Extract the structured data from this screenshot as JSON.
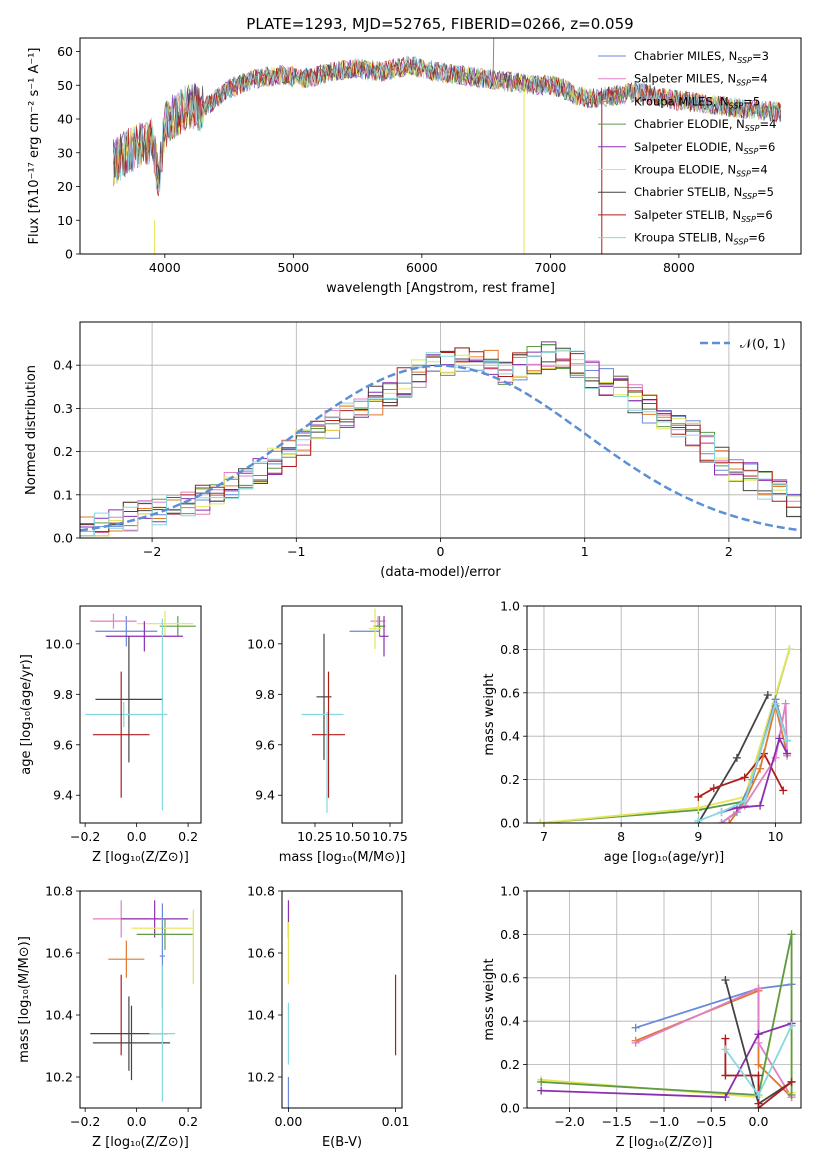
{
  "title": "PLATE=1293, MJD=52765, FIBERID=0266, z=0.059",
  "chart_data": [
    {
      "id": "spectrum",
      "type": "line",
      "xlabel": "wavelength [Angstrom, rest frame]",
      "ylabel": "Flux [fλ10⁻¹⁷ erg cm⁻² s⁻¹ A⁻¹]",
      "xlim": [
        3340,
        8950
      ],
      "ylim": [
        0,
        64
      ],
      "xticks": [
        4000,
        5000,
        6000,
        7000,
        8000
      ],
      "yticks": [
        0,
        10,
        20,
        30,
        40,
        50,
        60
      ],
      "grid": false,
      "legend_position": "top-right",
      "continuum": {
        "x": [
          3600,
          3700,
          3800,
          3900,
          3950,
          4000,
          4100,
          4200,
          4300,
          4400,
          4500,
          4700,
          4900,
          5100,
          5300,
          5500,
          5700,
          5900,
          6100,
          6300,
          6500,
          6700,
          6900,
          7000,
          7100,
          7200,
          7300,
          7500,
          7700,
          7900,
          8100,
          8300,
          8500,
          8800
        ],
        "y": [
          27,
          30,
          32,
          34,
          22,
          38,
          42,
          44,
          43,
          46,
          49,
          52,
          53,
          52,
          54,
          55,
          54,
          56,
          54,
          53,
          52,
          51,
          50,
          50,
          49,
          47,
          46,
          47,
          48,
          46,
          45,
          44,
          43,
          42
        ]
      },
      "series": [
        {
          "name": "Chabrier MILES, N_SSP=3",
          "label_main": "Chabrier MILES, N",
          "label_sub": "SSP",
          "label_tail": "=3",
          "color": "#6a89d8"
        },
        {
          "name": "Salpeter MILES, N_SSP=4",
          "label_main": "Salpeter MILES, N",
          "label_sub": "SSP",
          "label_tail": "=4",
          "color": "#e07fc4"
        },
        {
          "name": "Kroupa MILES, N_SSP=5",
          "label_main": "Kroupa MILES, N",
          "label_sub": "SSP",
          "label_tail": "=5",
          "color": "#e0782e"
        },
        {
          "name": "Chabrier ELODIE, N_SSP=4",
          "label_main": "Chabrier ELODIE, N",
          "label_sub": "SSP",
          "label_tail": "=4",
          "color": "#5d9a4a"
        },
        {
          "name": "Salpeter ELODIE, N_SSP=6",
          "label_main": "Salpeter ELODIE, N",
          "label_sub": "SSP",
          "label_tail": "=6",
          "color": "#8b2fb0"
        },
        {
          "name": "Kroupa ELODIE, N_SSP=4",
          "label_main": "Kroupa ELODIE, N",
          "label_sub": "SSP",
          "label_tail": "=4",
          "color": "#e5e55a"
        },
        {
          "name": "Chabrier STELIB, N_SSP=5",
          "label_main": "Chabrier STELIB, N",
          "label_sub": "SSP",
          "label_tail": "=5",
          "color": "#444444"
        },
        {
          "name": "Salpeter STELIB, N_SSP=6",
          "label_main": "Salpeter STELIB, N",
          "label_sub": "SSP",
          "label_tail": "=6",
          "color": "#b01c1c"
        },
        {
          "name": "Kroupa STELIB, N_SSP=6",
          "label_main": "Kroupa STELIB, N",
          "label_sub": "SSP",
          "label_tail": "=6",
          "color": "#86d8e0"
        }
      ]
    },
    {
      "id": "residuals",
      "type": "line",
      "xlabel": "(data-model)/error",
      "ylabel": "Normed distribution",
      "xlim": [
        -2.5,
        2.5
      ],
      "ylim": [
        0,
        0.5
      ],
      "xticks": [
        -2,
        -1,
        0,
        1,
        2
      ],
      "yticks": [
        0.0,
        0.1,
        0.2,
        0.3,
        0.4
      ],
      "grid": true,
      "legend_label": "𝒩(0, 1)",
      "legend_position": "top-right",
      "bin_edges_start": -2.5,
      "bin_width": 0.1,
      "histogram_envelope": [
        0.02,
        0.03,
        0.04,
        0.05,
        0.055,
        0.06,
        0.065,
        0.08,
        0.09,
        0.1,
        0.12,
        0.14,
        0.16,
        0.18,
        0.2,
        0.22,
        0.24,
        0.26,
        0.28,
        0.3,
        0.32,
        0.34,
        0.36,
        0.38,
        0.4,
        0.41,
        0.42,
        0.41,
        0.4,
        0.39,
        0.4,
        0.41,
        0.42,
        0.41,
        0.4,
        0.38,
        0.36,
        0.34,
        0.32,
        0.3,
        0.28,
        0.26,
        0.24,
        0.21,
        0.18,
        0.16,
        0.14,
        0.12,
        0.1,
        0.08
      ]
    },
    {
      "id": "age-vs-Z",
      "type": "scatter",
      "xlabel": "Z [log₁₀(Z/Z⊙)]",
      "ylabel": "age  [log₁₀(age/yr)]",
      "xlim": [
        -0.22,
        0.25
      ],
      "ylim": [
        9.29,
        10.15
      ],
      "xticks": [
        -0.2,
        0.0,
        0.2
      ],
      "yticks": [
        9.4,
        9.6,
        9.8,
        10.0
      ],
      "points": [
        {
          "x": -0.04,
          "y": 10.05,
          "xerr": 0.12,
          "yerr": 0.06,
          "color": "#6a89d8"
        },
        {
          "x": -0.09,
          "y": 10.09,
          "xerr": 0.09,
          "yerr": 0.03,
          "color": "#e07fc4"
        },
        {
          "x": 0.16,
          "y": 10.07,
          "xerr": 0.07,
          "yerr": 0.04,
          "color": "#5d9a4a"
        },
        {
          "x": 0.11,
          "y": 10.08,
          "xerr": 0.11,
          "yerr": 0.05,
          "color": "#e5e55a"
        },
        {
          "x": 0.03,
          "y": 10.03,
          "xerr": 0.15,
          "yerr": 0.06,
          "color": "#8b2fb0"
        },
        {
          "x": -0.03,
          "y": 9.78,
          "xerr": 0.13,
          "yerr": 0.25,
          "color": "#444444"
        },
        {
          "x": -0.05,
          "y": 9.72,
          "xerr": 0.15,
          "yerr": 0.05,
          "color": "#86d8e0"
        },
        {
          "x": -0.06,
          "y": 9.64,
          "xerr": 0.11,
          "yerr": 0.25,
          "color": "#b01c1c"
        },
        {
          "x": 0.1,
          "y": 9.72,
          "xerr": 0.02,
          "yerr": 0.38,
          "color": "#86d8e0"
        }
      ]
    },
    {
      "id": "age-vs-mass",
      "type": "scatter",
      "xlabel": "mass [log₁₀(M/M⊙)]",
      "ylabel": "",
      "xlim": [
        10.03,
        10.83
      ],
      "ylim": [
        9.29,
        10.15
      ],
      "xticks": [
        10.25,
        10.5,
        10.75
      ],
      "yticks": [
        9.4,
        9.6,
        9.8,
        10.0
      ],
      "points": [
        {
          "x": 10.58,
          "y": 10.05,
          "xerr": 0.1,
          "yerr": 0.0,
          "color": "#6a89d8"
        },
        {
          "x": 10.67,
          "y": 10.09,
          "xerr": 0.05,
          "yerr": 0.02,
          "color": "#e07fc4"
        },
        {
          "x": 10.68,
          "y": 10.07,
          "xerr": 0.04,
          "yerr": 0.04,
          "color": "#5d9a4a"
        },
        {
          "x": 10.65,
          "y": 10.06,
          "xerr": 0.04,
          "yerr": 0.08,
          "color": "#e5e55a"
        },
        {
          "x": 10.71,
          "y": 10.03,
          "xerr": 0.03,
          "yerr": 0.08,
          "color": "#8b2fb0"
        },
        {
          "x": 10.31,
          "y": 9.79,
          "xerr": 0.05,
          "yerr": 0.25,
          "color": "#444444"
        },
        {
          "x": 10.3,
          "y": 9.72,
          "xerr": 0.14,
          "yerr": 0.0,
          "color": "#86d8e0"
        },
        {
          "x": 10.34,
          "y": 9.64,
          "xerr": 0.11,
          "yerr": 0.25,
          "color": "#b01c1c"
        },
        {
          "x": 10.33,
          "y": 9.53,
          "xerr": 0.0,
          "yerr": 0.2,
          "color": "#86d8e0"
        }
      ]
    },
    {
      "id": "weight-vs-age",
      "type": "line",
      "xlabel": "age  [log₁₀(age/yr)]",
      "ylabel": "mass weight",
      "xlim": [
        6.78,
        10.33
      ],
      "ylim": [
        0,
        1.0
      ],
      "xticks": [
        7,
        8,
        9,
        10
      ],
      "yticks": [
        0.0,
        0.2,
        0.4,
        0.6,
        0.8,
        1.0
      ],
      "grid": true,
      "series": [
        {
          "color": "#5d9a4a",
          "x": [
            6.95,
            9.0,
            9.6,
            10.18
          ],
          "y": [
            0.0,
            0.06,
            0.1,
            0.8
          ]
        },
        {
          "color": "#e5e55a",
          "x": [
            6.95,
            9.0,
            9.6,
            10.18
          ],
          "y": [
            0.0,
            0.07,
            0.12,
            0.8
          ]
        },
        {
          "color": "#444444",
          "x": [
            9.0,
            9.5,
            9.9
          ],
          "y": [
            0.0,
            0.3,
            0.59
          ]
        },
        {
          "color": "#b01c1c",
          "x": [
            9.0,
            9.2,
            9.6,
            9.85,
            10.1
          ],
          "y": [
            0.12,
            0.16,
            0.21,
            0.32,
            0.15
          ]
        },
        {
          "color": "#6a89d8",
          "x": [
            9.3,
            9.5,
            9.7,
            10.0,
            10.15
          ],
          "y": [
            0.0,
            0.05,
            0.2,
            0.57,
            0.38
          ]
        },
        {
          "color": "#e0782e",
          "x": [
            9.4,
            9.6,
            9.8,
            10.0,
            10.15
          ],
          "y": [
            0.0,
            0.1,
            0.25,
            0.54,
            0.32
          ]
        },
        {
          "color": "#e07fc4",
          "x": [
            9.3,
            9.6,
            10.0,
            10.13,
            10.15
          ],
          "y": [
            0.0,
            0.08,
            0.3,
            0.55,
            0.31
          ]
        },
        {
          "color": "#8b2fb0",
          "x": [
            9.3,
            9.5,
            9.8,
            10.05,
            10.15
          ],
          "y": [
            0.05,
            0.07,
            0.08,
            0.39,
            0.32
          ]
        },
        {
          "color": "#86d8e0",
          "x": [
            9.0,
            9.3,
            9.6,
            10.0,
            10.15
          ],
          "y": [
            0.01,
            0.05,
            0.1,
            0.55,
            0.38
          ]
        }
      ]
    },
    {
      "id": "mass-vs-Z",
      "type": "scatter",
      "xlabel": "Z [log₁₀(Z/Z⊙)]",
      "ylabel": "mass [log₁₀(M/M⊙)]",
      "xlim": [
        -0.22,
        0.25
      ],
      "ylim": [
        10.1,
        10.8
      ],
      "xticks": [
        -0.2,
        0.0,
        0.2
      ],
      "yticks": [
        10.2,
        10.4,
        10.6,
        10.8
      ],
      "points": [
        {
          "x": -0.06,
          "y": 10.71,
          "xerr": 0.11,
          "yerr": 0.06,
          "color": "#e07fc4"
        },
        {
          "x": 0.07,
          "y": 10.71,
          "xerr": 0.13,
          "yerr": 0.06,
          "color": "#8b2fb0"
        },
        {
          "x": 0.11,
          "y": 10.66,
          "xerr": 0.11,
          "yerr": 0.05,
          "color": "#5d9a4a"
        },
        {
          "x": 0.1,
          "y": 10.68,
          "xerr": 0.12,
          "yerr": 0.04,
          "color": "#e5e55a"
        },
        {
          "x": 0.1,
          "y": 10.59,
          "xerr": 0.01,
          "yerr": 0.17,
          "color": "#6a89d8"
        },
        {
          "x": 0.22,
          "y": 10.62,
          "xerr": 0.0,
          "yerr": 0.12,
          "color": "#e5e55a"
        },
        {
          "x": -0.04,
          "y": 10.58,
          "xerr": 0.07,
          "yerr": 0.06,
          "color": "#e0782e"
        },
        {
          "x": -0.03,
          "y": 10.34,
          "xerr": 0.15,
          "yerr": 0.12,
          "color": "#444444"
        },
        {
          "x": -0.02,
          "y": 10.31,
          "xerr": 0.15,
          "yerr": 0.12,
          "color": "#444444"
        },
        {
          "x": -0.06,
          "y": 10.4,
          "xerr": 0.0,
          "yerr": 0.13,
          "color": "#b01c1c"
        },
        {
          "x": 0.1,
          "y": 10.34,
          "xerr": 0.05,
          "yerr": 0.22,
          "color": "#86d8e0"
        }
      ]
    },
    {
      "id": "mass-vs-EBV",
      "type": "scatter",
      "xlabel": "E(B-V)",
      "ylabel": "",
      "xlim": [
        -0.0006,
        0.0106
      ],
      "ylim": [
        10.1,
        10.8
      ],
      "xticks": [
        0.0,
        0.01
      ],
      "xtick_labels": [
        "0.00",
        "0.01"
      ],
      "yticks": [
        10.2,
        10.4,
        10.6,
        10.8
      ],
      "points": [
        {
          "x": 0.0,
          "y": 10.71,
          "xerr": 0,
          "yerr": 0.06,
          "color": "#8b2fb0"
        },
        {
          "x": 0.0,
          "y": 10.6,
          "xerr": 0,
          "yerr": 0.1,
          "color": "#e5e55a"
        },
        {
          "x": 0.0,
          "y": 10.34,
          "xerr": 0,
          "yerr": 0.1,
          "color": "#86d8e0"
        },
        {
          "x": 0.0,
          "y": 10.15,
          "xerr": 0,
          "yerr": 0.05,
          "color": "#6a89d8"
        },
        {
          "x": 0.01,
          "y": 10.4,
          "xerr": 0,
          "yerr": 0.13,
          "color": "#b01c1c"
        }
      ]
    },
    {
      "id": "weight-vs-Z",
      "type": "line",
      "xlabel": "Z [log₁₀(Z/Z⊙)]",
      "ylabel": "mass weight",
      "xlim": [
        -2.45,
        0.45
      ],
      "ylim": [
        0,
        1.0
      ],
      "xticks": [
        -2.0,
        -1.5,
        -1.0,
        -0.5,
        0.0
      ],
      "yticks": [
        0.0,
        0.2,
        0.4,
        0.6,
        0.8,
        1.0
      ],
      "grid": true,
      "series": [
        {
          "color": "#6a89d8",
          "x": [
            -1.3,
            0.0,
            0.35,
            0.35
          ],
          "y": [
            0.37,
            0.55,
            0.57,
            0.38
          ]
        },
        {
          "color": "#e0782e",
          "x": [
            -1.3,
            0.0,
            0.0,
            0.35
          ],
          "y": [
            0.31,
            0.54,
            0.2,
            0.05
          ]
        },
        {
          "color": "#e07fc4",
          "x": [
            -1.3,
            0.0,
            0.0,
            0.35
          ],
          "y": [
            0.3,
            0.55,
            0.3,
            0.05
          ]
        },
        {
          "color": "#e5e55a",
          "x": [
            -2.3,
            0.0,
            0.35,
            0.35
          ],
          "y": [
            0.13,
            0.05,
            0.8,
            0.07
          ]
        },
        {
          "color": "#5d9a4a",
          "x": [
            -2.3,
            0.0,
            0.35,
            0.35
          ],
          "y": [
            0.12,
            0.06,
            0.8,
            0.06
          ]
        },
        {
          "color": "#8b2fb0",
          "x": [
            -2.3,
            -0.35,
            0.0,
            0.35
          ],
          "y": [
            0.08,
            0.05,
            0.34,
            0.39
          ]
        },
        {
          "color": "#444444",
          "x": [
            -0.35,
            0.0,
            0.35
          ],
          "y": [
            0.59,
            0.02,
            0.12
          ]
        },
        {
          "color": "#b01c1c",
          "x": [
            -0.35,
            -0.35,
            0.0,
            0.0,
            0.35
          ],
          "y": [
            0.32,
            0.15,
            0.15,
            0.0,
            0.12
          ]
        },
        {
          "color": "#86d8e0",
          "x": [
            -0.35,
            0.0,
            0.35
          ],
          "y": [
            0.27,
            0.06,
            0.38
          ]
        }
      ]
    }
  ]
}
